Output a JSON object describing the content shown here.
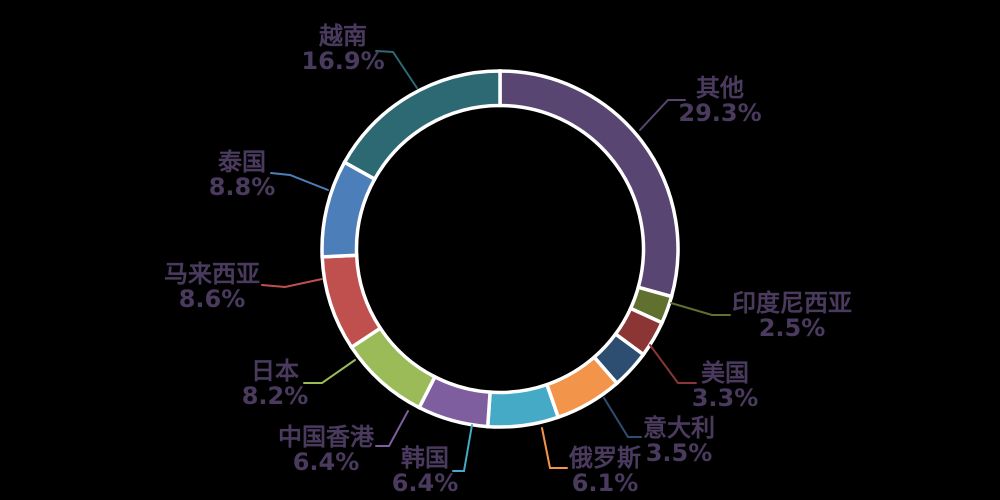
{
  "chart_data": {
    "type": "pie",
    "subtype": "donut",
    "title": "",
    "start_angle_deg": 0,
    "direction": "clockwise",
    "legend": "none (callout labels with leader lines)",
    "text_color": "#493a5e",
    "background": "#000000",
    "separator_color": "#ffffff",
    "slices": [
      {
        "label": "其他",
        "value": 29.3,
        "pct_label": "29.3%",
        "color": "#594571"
      },
      {
        "label": "印度尼西亚",
        "value": 2.5,
        "pct_label": "2.5%",
        "color": "#5f702f"
      },
      {
        "label": "美国",
        "value": 3.3,
        "pct_label": "3.3%",
        "color": "#8b3634"
      },
      {
        "label": "意大利",
        "value": 3.5,
        "pct_label": "3.5%",
        "color": "#2d4d71"
      },
      {
        "label": "俄罗斯",
        "value": 6.1,
        "pct_label": "6.1%",
        "color": "#f2944a"
      },
      {
        "label": "韩国",
        "value": 6.4,
        "pct_label": "6.4%",
        "color": "#45aac6"
      },
      {
        "label": "中国香港",
        "value": 6.4,
        "pct_label": "6.4%",
        "color": "#7e5e9e"
      },
      {
        "label": "日本",
        "value": 8.2,
        "pct_label": "8.2%",
        "color": "#9bbb59"
      },
      {
        "label": "马来西亚",
        "value": 8.6,
        "pct_label": "8.6%",
        "color": "#c0504d"
      },
      {
        "label": "泰国",
        "value": 8.8,
        "pct_label": "8.8%",
        "color": "#4c7fba"
      },
      {
        "label": "越南",
        "value": 16.9,
        "pct_label": "16.9%",
        "color": "#2d6973"
      }
    ]
  }
}
